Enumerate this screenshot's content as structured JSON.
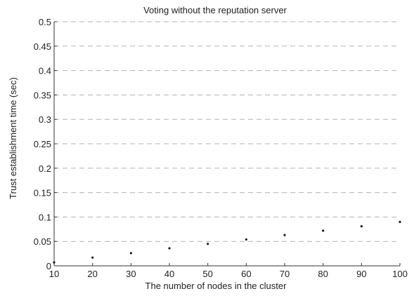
{
  "chart_data": {
    "type": "scatter",
    "title": "Voting without the reputation server",
    "xlabel": "The number of nodes in the cluster",
    "ylabel": "Trust establishment time (sec)",
    "xlim": [
      10,
      100
    ],
    "ylim": [
      0,
      0.5
    ],
    "xticks": [
      10,
      20,
      30,
      40,
      50,
      60,
      70,
      80,
      90,
      100
    ],
    "yticks": [
      0,
      0.05,
      0.1,
      0.15,
      0.2,
      0.25,
      0.3,
      0.35,
      0.4,
      0.45,
      0.5
    ],
    "xtick_labels": [
      "10",
      "20",
      "30",
      "40",
      "50",
      "60",
      "70",
      "80",
      "90",
      "100"
    ],
    "ytick_labels": [
      "0",
      "0.05",
      "0.1",
      "0.15",
      "0.2",
      "0.25",
      "0.3",
      "0.35",
      "0.4",
      "0.45",
      "0.5"
    ],
    "grid": true,
    "series": [
      {
        "points": [
          {
            "x": 10,
            "y": 0.007
          },
          {
            "x": 20,
            "y": 0.017
          },
          {
            "x": 30,
            "y": 0.026
          },
          {
            "x": 40,
            "y": 0.036
          },
          {
            "x": 50,
            "y": 0.045
          },
          {
            "x": 60,
            "y": 0.054
          },
          {
            "x": 70,
            "y": 0.063
          },
          {
            "x": 80,
            "y": 0.072
          },
          {
            "x": 90,
            "y": 0.081
          },
          {
            "x": 100,
            "y": 0.09
          }
        ]
      }
    ]
  },
  "colors": {
    "background": "#ffffff",
    "grid": "#9a9a9a",
    "axis": "#333333",
    "text": "#222222",
    "points": "#1a1a1a"
  }
}
